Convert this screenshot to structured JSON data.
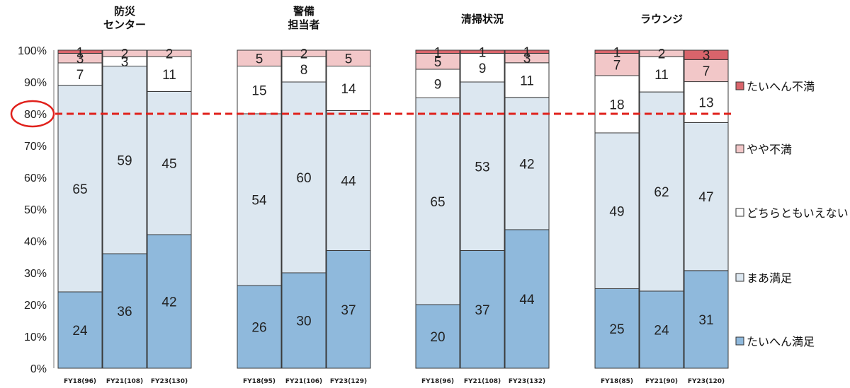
{
  "chart_data": {
    "type": "bar",
    "stacked": true,
    "percent_stacked": true,
    "groups": [
      {
        "title": [
          "防災",
          "センター"
        ],
        "bars": [
          {
            "label": "FY18(96)",
            "values": [
              24,
              65,
              7,
              3,
              1
            ]
          },
          {
            "label": "FY21(108)",
            "values": [
              36,
              59,
              3,
              2,
              0
            ]
          },
          {
            "label": "FY23(130)",
            "values": [
              42,
              45,
              11,
              2,
              0
            ]
          }
        ]
      },
      {
        "title": [
          "警備",
          "担当者"
        ],
        "bars": [
          {
            "label": "FY18(95)",
            "values": [
              26,
              54,
              15,
              5,
              0
            ]
          },
          {
            "label": "FY21(106)",
            "values": [
              30,
              60,
              8,
              2,
              0
            ]
          },
          {
            "label": "FY23(129)",
            "values": [
              37,
              44,
              14,
              5,
              0
            ]
          }
        ]
      },
      {
        "title": [
          "清掃状況"
        ],
        "bars": [
          {
            "label": "FY18(96)",
            "values": [
              20,
              65,
              9,
              5,
              1
            ]
          },
          {
            "label": "FY21(108)",
            "values": [
              37,
              53,
              9,
              0,
              1
            ]
          },
          {
            "label": "FY23(132)",
            "values": [
              44,
              42,
              11,
              3,
              1
            ]
          }
        ]
      },
      {
        "title": [
          "ラウンジ"
        ],
        "bars": [
          {
            "label": "FY18(85)",
            "values": [
              25,
              49,
              18,
              7,
              1
            ]
          },
          {
            "label": "FY21(90)",
            "values": [
              24,
              62,
              11,
              2,
              0
            ]
          },
          {
            "label": "FY23(120)",
            "values": [
              31,
              47,
              13,
              7,
              3
            ]
          }
        ]
      }
    ],
    "series": [
      {
        "name": "たいへん満足",
        "color": "#8fb9dc"
      },
      {
        "name": "まあ満足",
        "color": "#dce7f0"
      },
      {
        "name": "どちらともいえない",
        "color": "#ffffff"
      },
      {
        "name": "やや不満",
        "color": "#f2c7c8"
      },
      {
        "name": "たいへん不満",
        "color": "#d9646b"
      }
    ],
    "legend_order": [
      "たいへん不満",
      "やや不満",
      "どちらともいえない",
      "まあ満足",
      "たいへん満足"
    ],
    "legend_position": "right",
    "y_ticks": [
      "0%",
      "10%",
      "20%",
      "30%",
      "40%",
      "50%",
      "60%",
      "70%",
      "80%",
      "90%",
      "100%"
    ],
    "ylim": [
      0,
      100
    ],
    "reference_line": {
      "value": 80,
      "label": "80%",
      "color": "#e0201b",
      "style": "dashed"
    },
    "grid": false
  }
}
